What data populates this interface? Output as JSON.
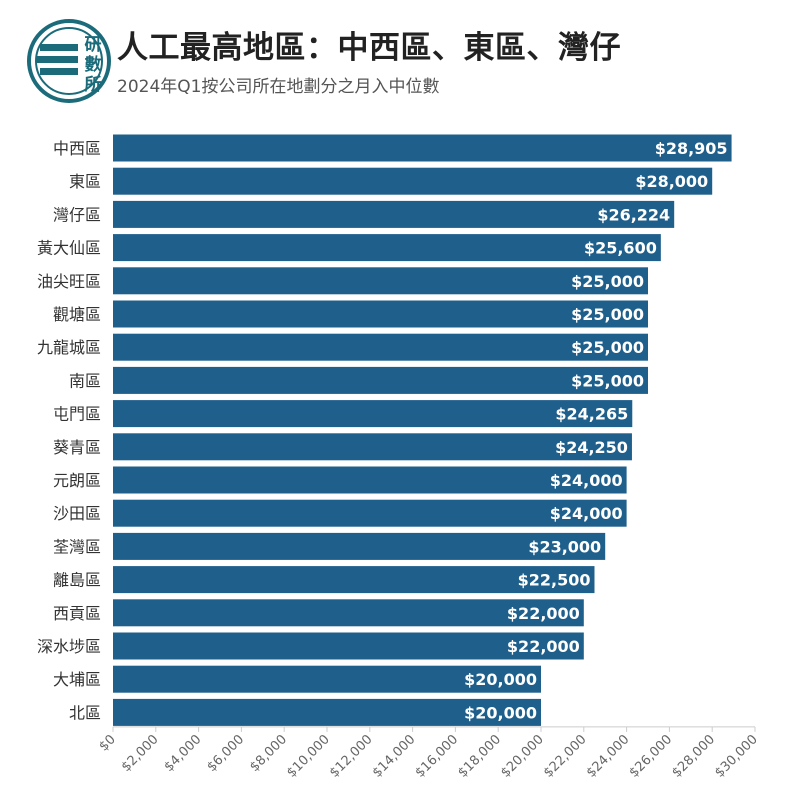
{
  "header": {
    "title": "人工最高地區：中西區、東區、灣仔",
    "subtitle": "2024年Q1按公司所在地劃分之月入中位數"
  },
  "logo": {
    "text": "研數所",
    "chars": [
      "研",
      "數",
      "所"
    ],
    "color": "#1b6b7a"
  },
  "colors": {
    "bar": "#1f5f8b",
    "bar_label": "#ffffff",
    "category_label": "#333333",
    "tick_label": "#666666"
  },
  "chart_data": {
    "type": "bar",
    "orientation": "horizontal",
    "title": "人工最高地區：中西區、東區、灣仔",
    "subtitle": "2024年Q1按公司所在地劃分之月入中位數",
    "categories": [
      "中西區",
      "東區",
      "灣仔區",
      "黃大仙區",
      "油尖旺區",
      "觀塘區",
      "九龍城區",
      "南區",
      "屯門區",
      "葵青區",
      "元朗區",
      "沙田區",
      "荃灣區",
      "離島區",
      "西貢區",
      "深水埗區",
      "大埔區",
      "北區"
    ],
    "values": [
      28905,
      28000,
      26224,
      25600,
      25000,
      25000,
      25000,
      25000,
      24265,
      24250,
      24000,
      24000,
      23000,
      22500,
      22000,
      22000,
      20000,
      20000
    ],
    "value_labels": [
      "$28,905",
      "$28,000",
      "$26,224",
      "$25,600",
      "$25,000",
      "$25,000",
      "$25,000",
      "$25,000",
      "$24,265",
      "$24,250",
      "$24,000",
      "$24,000",
      "$23,000",
      "$22,500",
      "$22,000",
      "$22,000",
      "$20,000",
      "$20,000"
    ],
    "xlim": [
      0,
      30000
    ],
    "xticks": [
      0,
      2000,
      4000,
      6000,
      8000,
      10000,
      12000,
      14000,
      16000,
      18000,
      20000,
      22000,
      24000,
      26000,
      28000,
      30000
    ],
    "xtick_labels": [
      "$0",
      "$2,000",
      "$4,000",
      "$6,000",
      "$8,000",
      "$10,000",
      "$12,000",
      "$14,000",
      "$16,000",
      "$18,000",
      "$20,000",
      "$22,000",
      "$24,000",
      "$26,000",
      "$28,000",
      "$30,000"
    ],
    "xlabel": "",
    "ylabel": "",
    "grid": false,
    "legend": "none"
  }
}
